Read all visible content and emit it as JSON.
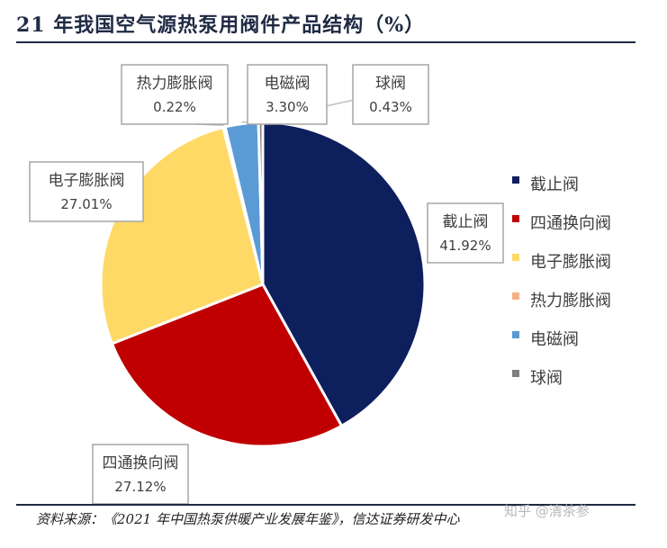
{
  "title": "21 年我国空气源热泵用阀件产品结构（%）",
  "source": "资料来源：《2021 年中国热泵供暖产业发展年鉴》，信达证券研发中心",
  "watermark": "知乎 @清茶参",
  "chart_data": {
    "type": "pie",
    "title": "21 年我国空气源热泵用阀件产品结构（%）",
    "legend_position": "right",
    "slices": [
      {
        "name": "截止阀",
        "value": 41.92,
        "label": "41.92%",
        "color": "#0d1f5c"
      },
      {
        "name": "四通换向阀",
        "value": 27.12,
        "label": "27.12%",
        "color": "#c00000"
      },
      {
        "name": "电子膨胀阀",
        "value": 27.01,
        "label": "27.01%",
        "color": "#ffd966"
      },
      {
        "name": "热力膨胀阀",
        "value": 0.22,
        "label": "0.22%",
        "color": "#f4b183"
      },
      {
        "name": "电磁阀",
        "value": 3.3,
        "label": "3.30%",
        "color": "#5b9bd5"
      },
      {
        "name": "球阀",
        "value": 0.43,
        "label": "0.43%",
        "color": "#7f7f7f"
      }
    ]
  }
}
